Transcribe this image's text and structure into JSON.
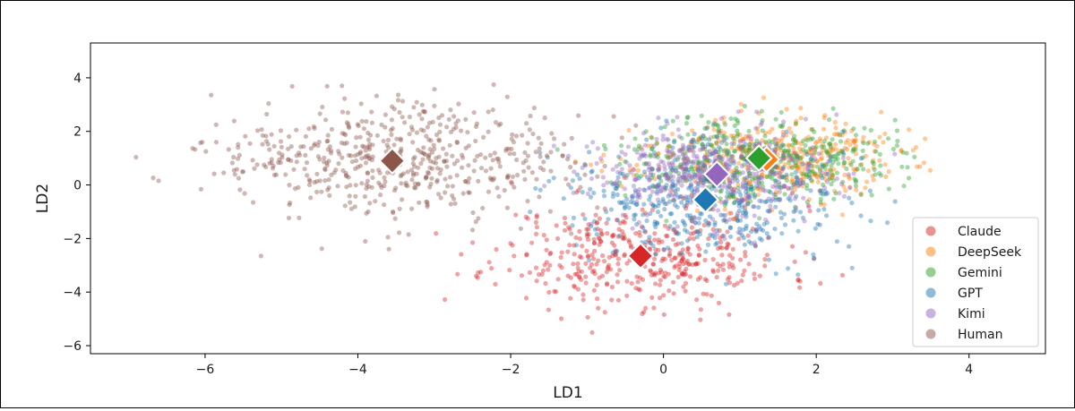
{
  "chart_data": {
    "type": "scatter",
    "title": "",
    "xlabel": "LD1",
    "ylabel": "LD2",
    "xlim": [
      -7.5,
      5.0
    ],
    "ylim": [
      -6.3,
      5.3
    ],
    "xticks": [
      -6,
      -4,
      -2,
      0,
      2,
      4
    ],
    "yticks": [
      -6,
      -4,
      -2,
      0,
      2,
      4
    ],
    "xtick_labels": [
      "−6",
      "−4",
      "−2",
      "0",
      "2",
      "4"
    ],
    "ytick_labels": [
      "−6",
      "−4",
      "−2",
      "0",
      "2",
      "4"
    ],
    "grid": false,
    "legend_position": "lower-right",
    "series": [
      {
        "name": "Claude",
        "color": "#d62728",
        "centroid": [
          -0.3,
          -2.65
        ],
        "spread": [
          0.95,
          0.95
        ],
        "count": 430,
        "seed": 11
      },
      {
        "name": "DeepSeek",
        "color": "#ff7f0e",
        "centroid": [
          1.35,
          0.95
        ],
        "spread": [
          0.85,
          0.75
        ],
        "count": 430,
        "seed": 23
      },
      {
        "name": "Gemini",
        "color": "#2ca02c",
        "centroid": [
          1.25,
          1.0
        ],
        "spread": [
          0.85,
          0.8
        ],
        "count": 430,
        "seed": 37
      },
      {
        "name": "GPT",
        "color": "#1f77b4",
        "centroid": [
          0.55,
          -0.55
        ],
        "spread": [
          0.95,
          1.1
        ],
        "count": 430,
        "seed": 41
      },
      {
        "name": "Kimi",
        "color": "#9467bd",
        "centroid": [
          0.7,
          0.4
        ],
        "spread": [
          0.85,
          0.85
        ],
        "count": 430,
        "seed": 53
      },
      {
        "name": "Human",
        "color": "#8c564b",
        "centroid": [
          -3.55,
          0.9
        ],
        "spread": [
          1.15,
          1.05
        ],
        "count": 560,
        "seed": 67
      }
    ]
  }
}
